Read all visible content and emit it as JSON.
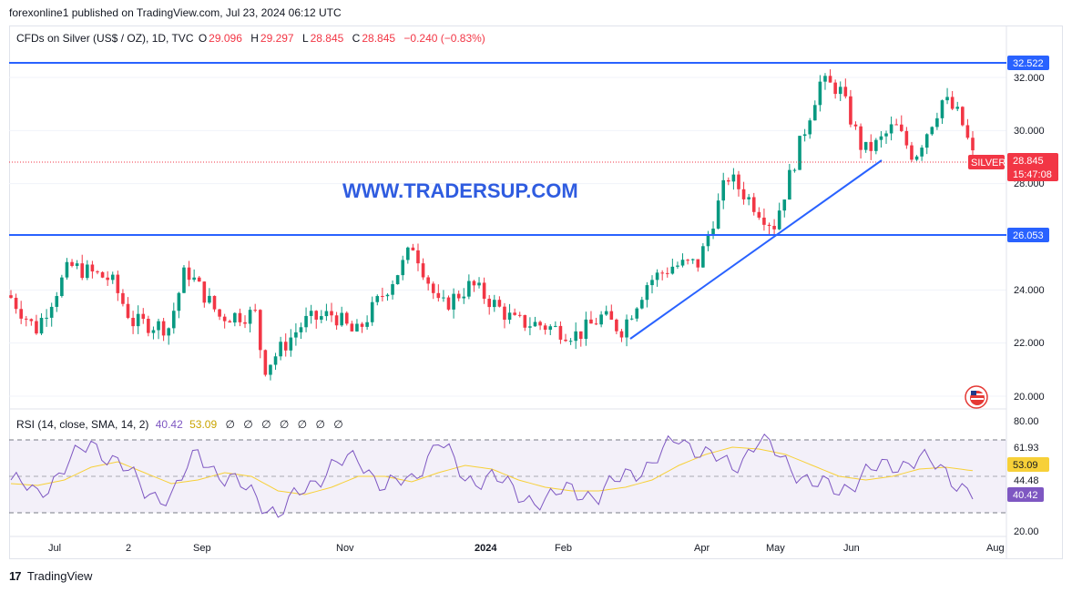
{
  "header": {
    "publisher": "forexonline1 published on TradingView.com, Jul 23, 2024 06:12 UTC"
  },
  "legend": {
    "symbol": "CFDs on Silver (US$ / OZ), 1D, TVC",
    "open_label": "O",
    "open": "29.096",
    "high_label": "H",
    "high": "29.297",
    "low_label": "L",
    "low": "28.845",
    "close_label": "C",
    "close": "28.845",
    "change": "−0.240 (−0.83%)"
  },
  "watermark": "WWW.TRADERSUP.COM",
  "price_tags": {
    "resistance": "32.522",
    "support": "26.053",
    "last": "28.845",
    "symbol_tag": "SILVER",
    "countdown": "15:47:08"
  },
  "rsi_legend": {
    "title": "RSI (14, close, SMA, 14, 2)",
    "rsi_value": "40.42",
    "sma_value": "53.09",
    "eye_icons": [
      "∅",
      "∅",
      "∅",
      "∅",
      "∅",
      "∅",
      "∅"
    ]
  },
  "rsi_tags": {
    "upper": "61.93",
    "sma": "53.09",
    "mid": "44.48",
    "rsi": "40.42"
  },
  "footer": {
    "brand": "TradingView",
    "logo": "17"
  },
  "colors": {
    "up": "#089981",
    "down": "#f23645",
    "line": "#2962ff",
    "rsi": "#7e57c2",
    "sma": "#f7d038"
  },
  "chart_data": [
    {
      "type": "candlestick",
      "title": "CFDs on Silver (US$ / OZ), 1D, TVC",
      "x_ticks": [
        "Jul",
        "2",
        "Sep",
        "Nov",
        "2024",
        "Feb",
        "Apr",
        "May",
        "Jun",
        "Aug"
      ],
      "y_ticks": [
        "32.000",
        "30.000",
        "28.000",
        "24.000",
        "22.000",
        "20.000"
      ],
      "ylim": [
        19.5,
        33.1
      ],
      "horizontal_levels": [
        32.522,
        26.053
      ],
      "trendline": [
        [
          22.2,
          "2024-02-end"
        ],
        [
          28.9,
          "2024-06-mid"
        ]
      ],
      "last_price": 28.845,
      "approx_close_path": [
        {
          "x": "2023-06-20",
          "y": 23.8
        },
        {
          "x": "2023-07-01",
          "y": 22.5
        },
        {
          "x": "2023-07-15",
          "y": 24.9
        },
        {
          "x": "2023-08-01",
          "y": 24.4
        },
        {
          "x": "2023-08-10",
          "y": 22.8
        },
        {
          "x": "2023-08-25",
          "y": 22.6
        },
        {
          "x": "2023-09-01",
          "y": 24.8
        },
        {
          "x": "2023-09-15",
          "y": 23.0
        },
        {
          "x": "2023-09-30",
          "y": 23.1
        },
        {
          "x": "2023-10-03",
          "y": 21.0
        },
        {
          "x": "2023-10-20",
          "y": 22.8
        },
        {
          "x": "2023-11-01",
          "y": 23.1
        },
        {
          "x": "2023-11-10",
          "y": 22.3
        },
        {
          "x": "2023-11-30",
          "y": 25.0
        },
        {
          "x": "2023-12-04",
          "y": 25.7
        },
        {
          "x": "2023-12-15",
          "y": 23.3
        },
        {
          "x": "2023-12-28",
          "y": 24.2
        },
        {
          "x": "2024-01-15",
          "y": 22.8
        },
        {
          "x": "2024-01-25",
          "y": 22.7
        },
        {
          "x": "2024-02-10",
          "y": 22.3
        },
        {
          "x": "2024-02-20",
          "y": 23.0
        },
        {
          "x": "2024-02-28",
          "y": 22.5
        },
        {
          "x": "2024-03-10",
          "y": 24.3
        },
        {
          "x": "2024-03-20",
          "y": 24.9
        },
        {
          "x": "2024-03-31",
          "y": 25.0
        },
        {
          "x": "2024-04-12",
          "y": 28.3
        },
        {
          "x": "2024-04-25",
          "y": 27.0
        },
        {
          "x": "2024-05-01",
          "y": 26.4
        },
        {
          "x": "2024-05-20",
          "y": 31.8
        },
        {
          "x": "2024-05-28",
          "y": 31.6
        },
        {
          "x": "2024-06-07",
          "y": 29.2
        },
        {
          "x": "2024-06-13",
          "y": 29.5
        },
        {
          "x": "2024-06-20",
          "y": 30.2
        },
        {
          "x": "2024-06-28",
          "y": 29.0
        },
        {
          "x": "2024-07-10",
          "y": 31.2
        },
        {
          "x": "2024-07-17",
          "y": 30.5
        },
        {
          "x": "2024-07-23",
          "y": 28.845
        }
      ]
    },
    {
      "type": "line",
      "title": "RSI (14, close, SMA, 14, 2)",
      "y_ticks": [
        "80.00",
        "20.00"
      ],
      "ylim": [
        20,
        80
      ],
      "band": [
        30,
        70
      ],
      "series": [
        {
          "name": "RSI",
          "values": [
            48,
            40,
            55,
            68,
            58,
            42,
            38,
            64,
            48,
            42,
            28,
            44,
            55,
            60,
            44,
            48,
            70,
            48,
            50,
            40,
            36,
            44,
            38,
            52,
            56,
            72,
            62,
            55,
            70,
            58,
            46,
            42,
            52,
            56,
            60,
            52,
            40.42
          ]
        },
        {
          "name": "SMA",
          "values": [
            46,
            45,
            48,
            55,
            58,
            52,
            46,
            48,
            52,
            50,
            42,
            40,
            44,
            50,
            50,
            47,
            52,
            56,
            54,
            48,
            44,
            42,
            42,
            44,
            48,
            56,
            62,
            66,
            65,
            62,
            56,
            50,
            48,
            50,
            54,
            55,
            53.09
          ]
        }
      ],
      "last_rsi": 40.42,
      "last_sma": 53.09
    }
  ]
}
